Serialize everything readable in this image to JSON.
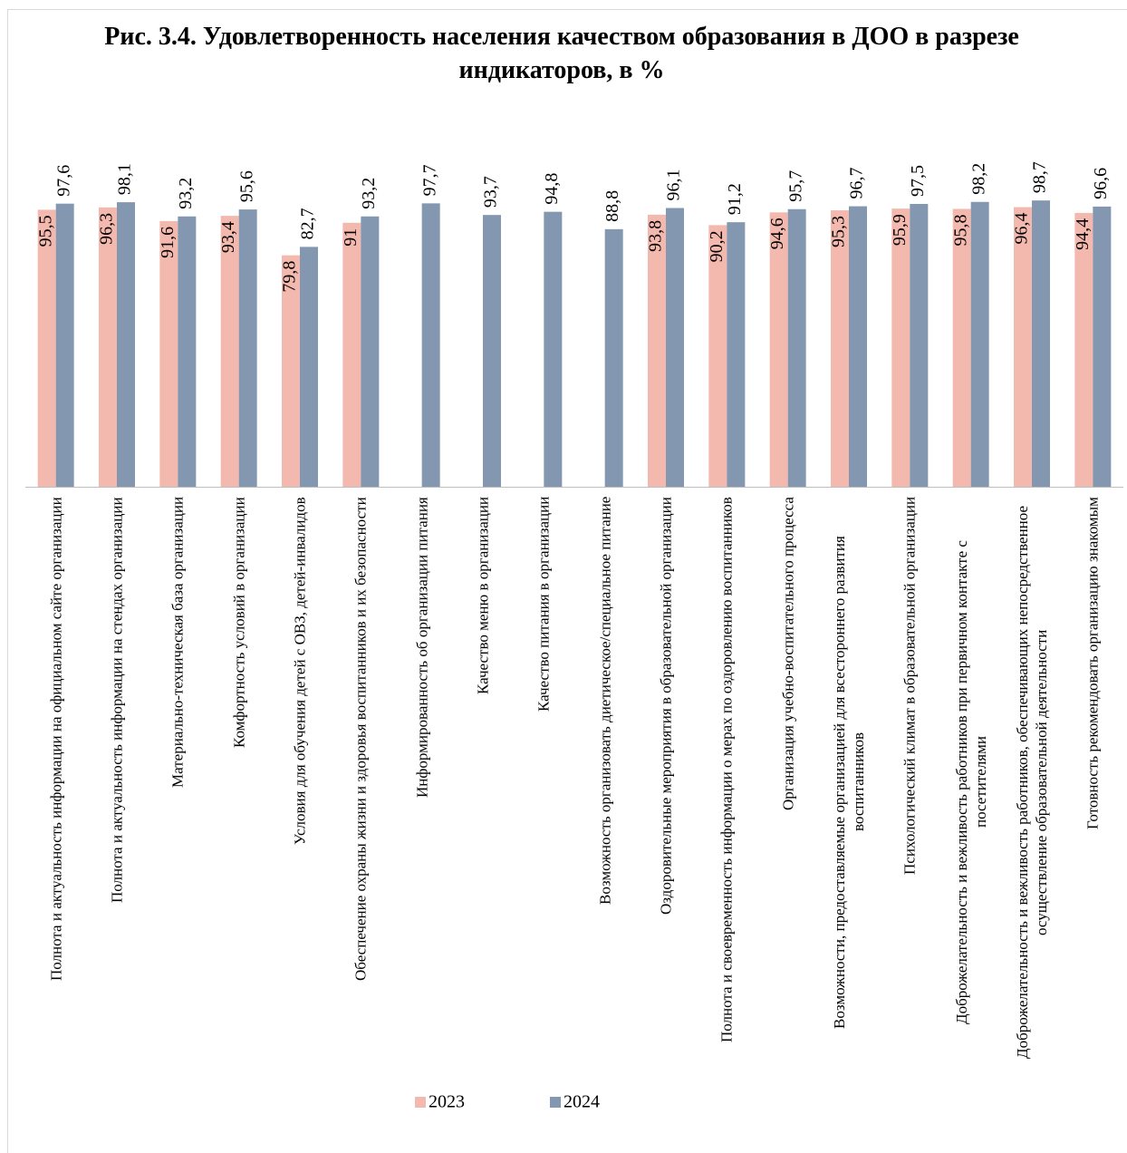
{
  "chart_data": {
    "type": "bar",
    "title": "Рис. 3.4. Удовлетворенность населения качеством образования в ДОО в разрезе индикаторов, в %",
    "categories": [
      "Полнота и актуальность информации на официальном сайте организации",
      "Полнота и актуальность информации на стендах организации",
      "Материально-техническая база организации",
      "Комфортность условий в организации",
      "Условия для обучения детей с ОВЗ, детей-инвалидов",
      "Обеспечение охраны жизни и здоровья воспитанников и их безопасности",
      "Информированность об организации питания",
      "Качество меню в организации",
      "Качество питания в организации",
      "Возможность организовать диетическое/специальное питание",
      "Оздоровительные мероприятия в образовательной организации",
      "Полнота и своевременность информации о мерах по оздоровлению воспитанников",
      "Организация учебно-воспитательного процесса",
      "Возможности, предоставляемые организацией для всестороннего развития воспитанников",
      "Психологический климат в образовательной организации",
      "Доброжелательность и вежливость работников при первичном контакте с посетителями",
      "Доброжелательность и вежливость работников, обеспечивающих непосредственное осуществление образовательной деятельности",
      "Готовность рекомендовать организацию знакомым"
    ],
    "series": [
      {
        "name": "2023",
        "color": "#f4b9ae",
        "values": [
          95.5,
          96.3,
          91.6,
          93.4,
          79.8,
          91,
          null,
          null,
          null,
          null,
          93.8,
          90.2,
          94.6,
          95.3,
          95.9,
          95.8,
          96.4,
          94.4
        ],
        "value_labels": [
          "95,5",
          "96,3",
          "91,6",
          "93,4",
          "79,8",
          "91",
          null,
          null,
          null,
          null,
          "93,8",
          "90,2",
          "94,6",
          "95,3",
          "95,9",
          "95,8",
          "96,4",
          "94,4"
        ]
      },
      {
        "name": "2024",
        "color": "#8497b0",
        "values": [
          97.6,
          98.1,
          93.2,
          95.6,
          82.7,
          93.2,
          97.7,
          93.7,
          94.8,
          88.8,
          96.1,
          91.2,
          95.7,
          96.7,
          97.5,
          98.2,
          98.7,
          96.6
        ],
        "value_labels": [
          "97,6",
          "98,1",
          "93,2",
          "95,6",
          "82,7",
          "93,2",
          "97,7",
          "93,7",
          "94,8",
          "88,8",
          "96,1",
          "91,2",
          "95,7",
          "96,7",
          "97,5",
          "98,2",
          "98,7",
          "96,6"
        ]
      }
    ],
    "ylim": [
      0,
      100
    ],
    "legend": "bottom"
  }
}
